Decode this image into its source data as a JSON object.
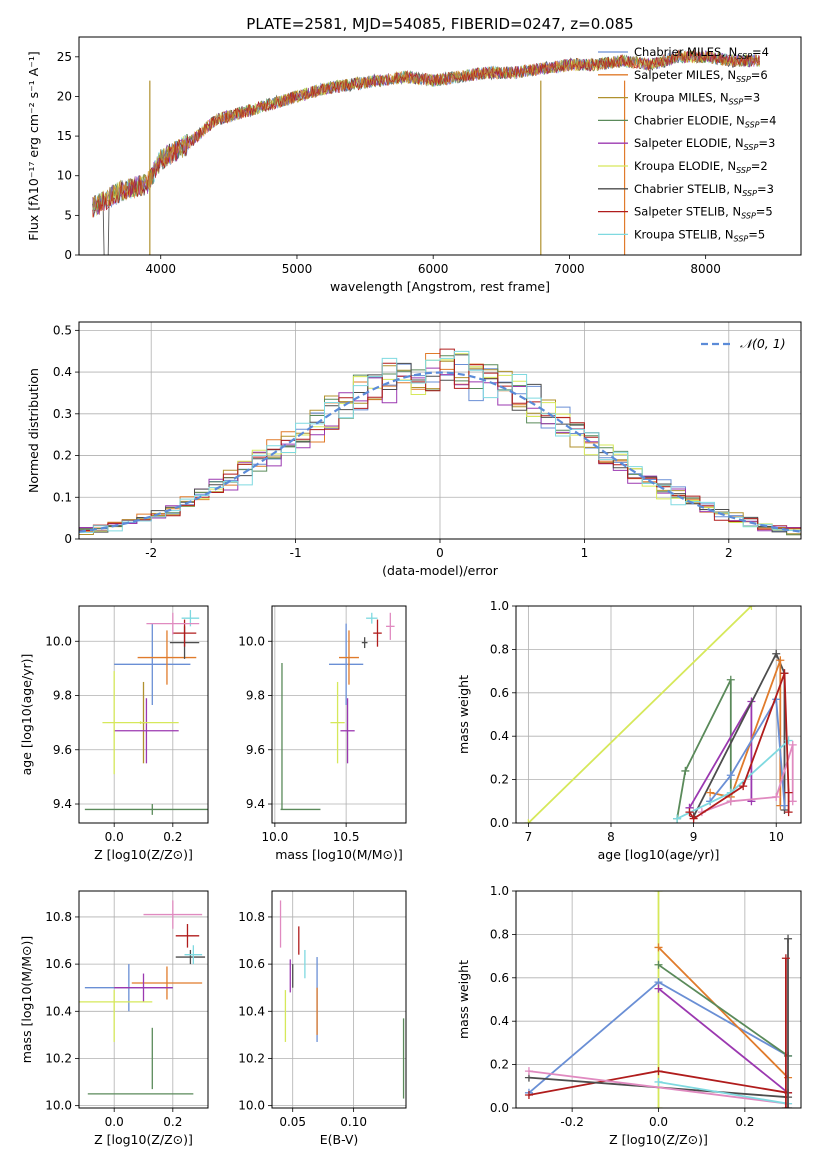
{
  "figure": {
    "title": "PLATE=2581, MJD=54085, FIBERID=0247, z=0.085"
  },
  "colors": {
    "Chabrier MILES": "#6a8fd5",
    "Salpeter MILES": "#e07b2b",
    "Kroupa MILES": "#b0912e",
    "Chabrier ELODIE": "#5a8a5a",
    "Salpeter ELODIE": "#9b38b0",
    "Kroupa ELODIE": "#d6e85a",
    "Chabrier STELIB": "#4d4d4d",
    "Salpeter STELIB": "#b01c1c",
    "Kroupa STELIB": "#7fd9e0",
    "pink": "#e08ac0",
    "normal": "#5b8bd8"
  },
  "chart_data": [
    {
      "id": "spectrum",
      "type": "line",
      "xlabel": "wavelength [Angstrom, rest frame]",
      "ylabel": "Flux [fλ10⁻¹⁷ erg cm⁻² s⁻¹ A⁻¹]",
      "xlim": [
        3400,
        8700
      ],
      "ylim": [
        0,
        27.5
      ],
      "xticks": [
        4000,
        5000,
        6000,
        7000,
        8000
      ],
      "yticks": [
        0,
        5,
        10,
        15,
        20,
        25
      ],
      "envelope_x": [
        3500,
        3600,
        3700,
        3800,
        3900,
        4000,
        4200,
        4400,
        4600,
        4800,
        5000,
        5200,
        5400,
        5600,
        5800,
        6000,
        6200,
        6400,
        6600,
        6800,
        7000,
        7200,
        7400,
        7600,
        7800,
        8000,
        8200,
        8400
      ],
      "envelope_y": [
        6,
        7,
        8,
        8.5,
        9,
        12,
        14,
        17,
        18,
        19,
        20,
        21,
        21.5,
        22,
        22.5,
        22,
        22.5,
        23,
        23,
        23.5,
        24,
        24,
        24.5,
        24,
        25,
        25,
        24.5,
        24.5
      ],
      "legend": [
        {
          "label": "Chabrier MILES, N_SSP=4",
          "color": "#6a8fd5"
        },
        {
          "label": "Salpeter MILES, N_SSP=6",
          "color": "#e07b2b"
        },
        {
          "label": "Kroupa MILES, N_SSP=3",
          "color": "#b0912e"
        },
        {
          "label": "Chabrier ELODIE, N_SSP=4",
          "color": "#5a8a5a"
        },
        {
          "label": "Salpeter ELODIE, N_SSP=3",
          "color": "#9b38b0"
        },
        {
          "label": "Kroupa ELODIE, N_SSP=2",
          "color": "#d6e85a"
        },
        {
          "label": "Chabrier STELIB, N_SSP=3",
          "color": "#4d4d4d"
        },
        {
          "label": "Salpeter STELIB, N_SSP=5",
          "color": "#b01c1c"
        },
        {
          "label": "Kroupa STELIB, N_SSP=5",
          "color": "#7fd9e0"
        }
      ]
    },
    {
      "id": "residuals",
      "type": "line",
      "xlabel": "(data-model)/error",
      "ylabel": "Normed distribution",
      "xlim": [
        -2.5,
        2.5
      ],
      "ylim": [
        0,
        0.52
      ],
      "xticks": [
        -2,
        -1,
        0,
        1,
        2
      ],
      "yticks": [
        0.0,
        0.1,
        0.2,
        0.3,
        0.4,
        0.5
      ],
      "legend_label": "N(0,1)",
      "bin_width": 0.1
    },
    {
      "id": "age_vs_Z",
      "type": "scatter",
      "xlabel": "Z [log10(Z/Z⊙)]",
      "ylabel": "age  [log10(age/yr)]",
      "xlim": [
        -0.12,
        0.32
      ],
      "ylim": [
        9.33,
        10.13
      ],
      "xticks": [
        0.0,
        0.2
      ],
      "yticks": [
        9.4,
        9.6,
        9.8,
        10.0
      ],
      "points": [
        {
          "c": "#6a8fd5",
          "x": 0.13,
          "xe": 0.13,
          "y": 9.915,
          "ye": 0.15
        },
        {
          "c": "#e07b2b",
          "x": 0.18,
          "xe": 0.1,
          "y": 9.94,
          "ye": 0.1
        },
        {
          "c": "#b0912e",
          "x": 0.1,
          "xe": 0.005,
          "y": 9.7,
          "ye": 0.15
        },
        {
          "c": "#5a8a5a",
          "x": 0.13,
          "xe": 0.23,
          "y": 9.38,
          "ye": 0.02
        },
        {
          "c": "#9b38b0",
          "x": 0.11,
          "xe": 0.11,
          "y": 9.67,
          "ye": 0.12
        },
        {
          "c": "#d6e85a",
          "x": 0.0,
          "xe": 0.0,
          "y": 9.7,
          "ye": 0.19
        },
        {
          "c": "#d6e85a",
          "x": 0.09,
          "xe": 0.13,
          "y": 9.7,
          "ye": 0.005
        },
        {
          "c": "#4d4d4d",
          "x": 0.24,
          "xe": 0.05,
          "y": 9.995,
          "ye": 0.06
        },
        {
          "c": "#b01c1c",
          "x": 0.24,
          "xe": 0.04,
          "y": 10.03,
          "ye": 0.05
        },
        {
          "c": "#7fd9e0",
          "x": 0.26,
          "xe": 0.03,
          "y": 10.085,
          "ye": 0.03
        },
        {
          "c": "#e08ac0",
          "x": 0.2,
          "xe": 0.09,
          "y": 10.065,
          "ye": 0.04
        }
      ]
    },
    {
      "id": "age_vs_mass",
      "type": "scatter",
      "xlabel": "mass [log10(M/M⊙)]",
      "ylabel": "",
      "xlim": [
        9.98,
        10.92
      ],
      "ylim": [
        9.33,
        10.13
      ],
      "xticks": [
        10.0,
        10.5
      ],
      "yticks": [
        9.4,
        9.6,
        9.8,
        10.0
      ],
      "points": [
        {
          "c": "#6a8fd5",
          "x": 10.5,
          "xe": 0.12,
          "y": 9.915,
          "ye": 0.15
        },
        {
          "c": "#e07b2b",
          "x": 10.52,
          "xe": 0.07,
          "y": 9.94,
          "ye": 0.1
        },
        {
          "c": "#5a8a5a",
          "x": 10.05,
          "xe": 0.0,
          "y": 9.65,
          "ye": 0.27
        },
        {
          "c": "#5a8a5a",
          "x": 10.18,
          "xe": 0.14,
          "y": 9.38,
          "ye": 0.0
        },
        {
          "c": "#9b38b0",
          "x": 10.51,
          "xe": 0.05,
          "y": 9.67,
          "ye": 0.12
        },
        {
          "c": "#d6e85a",
          "x": 10.44,
          "xe": 0.05,
          "y": 9.7,
          "ye": 0.15
        },
        {
          "c": "#4d4d4d",
          "x": 10.63,
          "xe": 0.02,
          "y": 9.995,
          "ye": 0.02
        },
        {
          "c": "#b01c1c",
          "x": 10.72,
          "xe": 0.03,
          "y": 10.03,
          "ye": 0.05
        },
        {
          "c": "#7fd9e0",
          "x": 10.68,
          "xe": 0.04,
          "y": 10.085,
          "ye": 0.02
        },
        {
          "c": "#e08ac0",
          "x": 10.81,
          "xe": 0.03,
          "y": 10.055,
          "ye": 0.05
        }
      ]
    },
    {
      "id": "massweight_vs_age",
      "type": "line",
      "xlabel": "age  [log10(age/yr)]",
      "ylabel": "mass weight",
      "xlim": [
        6.85,
        10.3
      ],
      "ylim": [
        0,
        1.0
      ],
      "xticks": [
        7,
        8,
        9,
        10
      ],
      "yticks": [
        0.0,
        0.2,
        0.4,
        0.6,
        0.8,
        1.0
      ],
      "series": [
        {
          "c": "#d6e85a",
          "x": [
            7.0,
            9.7
          ],
          "y": [
            0.0,
            1.0
          ]
        },
        {
          "c": "#5a8a5a",
          "x": [
            8.8,
            8.9,
            9.45,
            9.45
          ],
          "y": [
            0.02,
            0.24,
            0.66,
            0.1
          ]
        },
        {
          "c": "#9b38b0",
          "x": [
            8.95,
            9.7,
            9.7
          ],
          "y": [
            0.07,
            0.56,
            0.1
          ]
        },
        {
          "c": "#4d4d4d",
          "x": [
            9.0,
            10.0,
            10.1,
            10.1
          ],
          "y": [
            0.03,
            0.78,
            0.69,
            0.06
          ]
        },
        {
          "c": "#e07b2b",
          "x": [
            9.2,
            9.45,
            10.05,
            10.05
          ],
          "y": [
            0.14,
            0.12,
            0.75,
            0.08
          ]
        },
        {
          "c": "#6a8fd5",
          "x": [
            9.2,
            9.45,
            10.0,
            10.1
          ],
          "y": [
            0.1,
            0.22,
            0.57,
            0.08
          ]
        },
        {
          "c": "#7fd9e0",
          "x": [
            8.8,
            9.45,
            10.15
          ],
          "y": [
            0.02,
            0.14,
            0.38
          ]
        },
        {
          "c": "#e08ac0",
          "x": [
            9.1,
            9.45,
            10.0,
            10.2,
            10.2
          ],
          "y": [
            0.05,
            0.1,
            0.12,
            0.36,
            0.1
          ]
        },
        {
          "c": "#b01c1c",
          "x": [
            8.95,
            9.0,
            9.6,
            10.1,
            10.15,
            10.15
          ],
          "y": [
            0.05,
            0.02,
            0.17,
            0.69,
            0.14,
            0.05
          ]
        }
      ]
    },
    {
      "id": "mass_vs_Z",
      "type": "scatter",
      "xlabel": "Z [log10(Z/Z⊙)]",
      "ylabel": "mass [log10(M/M⊙)]",
      "xlim": [
        -0.12,
        0.32
      ],
      "ylim": [
        9.99,
        10.91
      ],
      "xticks": [
        0.0,
        0.2
      ],
      "yticks": [
        10.0,
        10.2,
        10.4,
        10.6,
        10.8
      ],
      "points": [
        {
          "c": "#6a8fd5",
          "x": 0.05,
          "xe": 0.15,
          "y": 10.5,
          "ye": 0.1
        },
        {
          "c": "#e07b2b",
          "x": 0.18,
          "xe": 0.12,
          "y": 10.52,
          "ye": 0.07
        },
        {
          "c": "#5a8a5a",
          "x": 0.09,
          "xe": 0.18,
          "y": 10.05,
          "ye": 0.0
        },
        {
          "c": "#5a8a5a",
          "x": 0.13,
          "xe": 0.0,
          "y": 10.2,
          "ye": 0.13
        },
        {
          "c": "#9b38b0",
          "x": 0.1,
          "xe": 0.1,
          "y": 10.5,
          "ye": 0.06
        },
        {
          "c": "#d6e85a",
          "x": 0.0,
          "xe": 0.0,
          "y": 10.38,
          "ye": 0.11
        },
        {
          "c": "#d6e85a",
          "x": 0.0,
          "xe": 0.13,
          "y": 10.44,
          "ye": 0.0
        },
        {
          "c": "#4d4d4d",
          "x": 0.26,
          "xe": 0.05,
          "y": 10.63,
          "ye": 0.03
        },
        {
          "c": "#b01c1c",
          "x": 0.25,
          "xe": 0.04,
          "y": 10.72,
          "ye": 0.05
        },
        {
          "c": "#7fd9e0",
          "x": 0.27,
          "xe": 0.03,
          "y": 10.64,
          "ye": 0.04
        },
        {
          "c": "#e08ac0",
          "x": 0.2,
          "xe": 0.1,
          "y": 10.81,
          "ye": 0.06
        }
      ]
    },
    {
      "id": "mass_vs_ebv",
      "type": "scatter",
      "xlabel": "E(B-V)",
      "ylabel": "",
      "xlim": [
        0.033,
        0.143
      ],
      "ylim": [
        9.99,
        10.91
      ],
      "xticks": [
        0.05,
        0.1
      ],
      "yticks": [
        10.0,
        10.2,
        10.4,
        10.6,
        10.8
      ],
      "points": [
        {
          "c": "#6a8fd5",
          "x": 0.07,
          "xe": 0.0,
          "y": 10.45,
          "ye": 0.18
        },
        {
          "c": "#e07b2b",
          "x": 0.07,
          "xe": 0.0,
          "y": 10.4,
          "ye": 0.1
        },
        {
          "c": "#5a8a5a",
          "x": 0.141,
          "xe": 0.0,
          "y": 10.2,
          "ye": 0.17
        },
        {
          "c": "#9b38b0",
          "x": 0.048,
          "xe": 0.0,
          "y": 10.55,
          "ye": 0.07
        },
        {
          "c": "#d6e85a",
          "x": 0.044,
          "xe": 0.0,
          "y": 10.38,
          "ye": 0.11
        },
        {
          "c": "#4d4d4d",
          "x": 0.05,
          "xe": 0.0,
          "y": 10.55,
          "ye": 0.05
        },
        {
          "c": "#b01c1c",
          "x": 0.055,
          "xe": 0.0,
          "y": 10.7,
          "ye": 0.06
        },
        {
          "c": "#7fd9e0",
          "x": 0.06,
          "xe": 0.0,
          "y": 10.6,
          "ye": 0.06
        },
        {
          "c": "#e08ac0",
          "x": 0.04,
          "xe": 0.0,
          "y": 10.77,
          "ye": 0.1
        }
      ]
    },
    {
      "id": "massweight_vs_Z",
      "type": "line",
      "xlabel": "Z [log10(Z/Z⊙)]",
      "ylabel": "mass weight",
      "xlim": [
        -0.33,
        0.33
      ],
      "ylim": [
        0,
        1.0
      ],
      "xticks": [
        -0.2,
        0.0,
        0.2
      ],
      "yticks": [
        0.0,
        0.2,
        0.4,
        0.6,
        0.8,
        1.0
      ],
      "series": [
        {
          "c": "#d6e85a",
          "x": [
            0.0,
            0.0
          ],
          "y": [
            0.0,
            1.0
          ]
        },
        {
          "c": "#6a8fd5",
          "x": [
            -0.3,
            0.0,
            0.3
          ],
          "y": [
            0.07,
            0.58,
            0.24
          ]
        },
        {
          "c": "#e07b2b",
          "x": [
            0.0,
            0.3
          ],
          "y": [
            0.74,
            0.14
          ]
        },
        {
          "c": "#5a8a5a",
          "x": [
            0.0,
            0.3
          ],
          "y": [
            0.66,
            0.24
          ]
        },
        {
          "c": "#9b38b0",
          "x": [
            0.0,
            0.3
          ],
          "y": [
            0.55,
            0.07
          ]
        },
        {
          "c": "#b01c1c",
          "x": [
            -0.3,
            0.0,
            0.3
          ],
          "y": [
            0.06,
            0.17,
            0.07
          ]
        },
        {
          "c": "#4d4d4d",
          "x": [
            -0.3,
            0.3
          ],
          "y": [
            0.14,
            0.05
          ]
        },
        {
          "c": "#e08ac0",
          "x": [
            -0.3,
            0.3
          ],
          "y": [
            0.17,
            0.02
          ]
        },
        {
          "c": "#7fd9e0",
          "x": [
            0.0,
            0.3
          ],
          "y": [
            0.12,
            0.02
          ]
        },
        {
          "c": "#4d4d4d",
          "x": [
            0.3,
            0.3
          ],
          "y": [
            0.0,
            0.78
          ]
        },
        {
          "c": "#b01c1c",
          "x": [
            0.295,
            0.295
          ],
          "y": [
            0.0,
            0.69
          ]
        }
      ]
    }
  ]
}
